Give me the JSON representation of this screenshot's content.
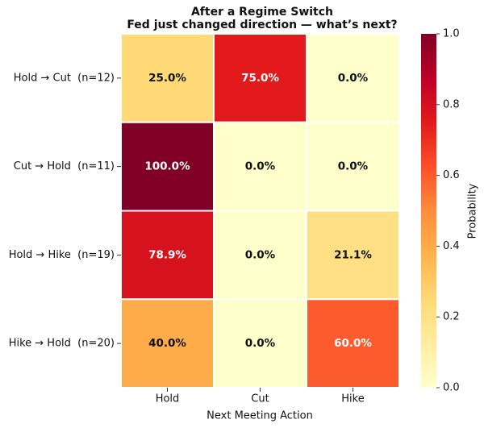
{
  "chart_data": {
    "type": "heatmap",
    "title": [
      "After a Regime Switch",
      "Fed just changed direction — what’s next?"
    ],
    "x_categories": [
      "Hold",
      "Cut",
      "Hike"
    ],
    "y_categories": [
      "Hold → Cut  (n=12)",
      "Cut → Hold  (n=11)",
      "Hold → Hike  (n=19)",
      "Hike → Hold  (n=20)"
    ],
    "values": [
      [
        0.25,
        0.75,
        0.0
      ],
      [
        1.0,
        0.0,
        0.0
      ],
      [
        0.789,
        0.0,
        0.211
      ],
      [
        0.4,
        0.0,
        0.6
      ]
    ],
    "value_labels": [
      [
        "25.0%",
        "75.0%",
        "0.0%"
      ],
      [
        "100.0%",
        "0.0%",
        "0.0%"
      ],
      [
        "78.9%",
        "0.0%",
        "21.1%"
      ],
      [
        "40.0%",
        "0.0%",
        "60.0%"
      ]
    ],
    "xlabel": "Next Meeting Action",
    "colormap": "YlOrRd",
    "colorbar_label": "Probability",
    "clim": [
      0,
      1
    ],
    "cticks": [
      {
        "value": 0,
        "label": "0.0"
      },
      0.2,
      0.4,
      0.6,
      0.8,
      {
        "value": 1,
        "label": "1.0"
      }
    ]
  }
}
